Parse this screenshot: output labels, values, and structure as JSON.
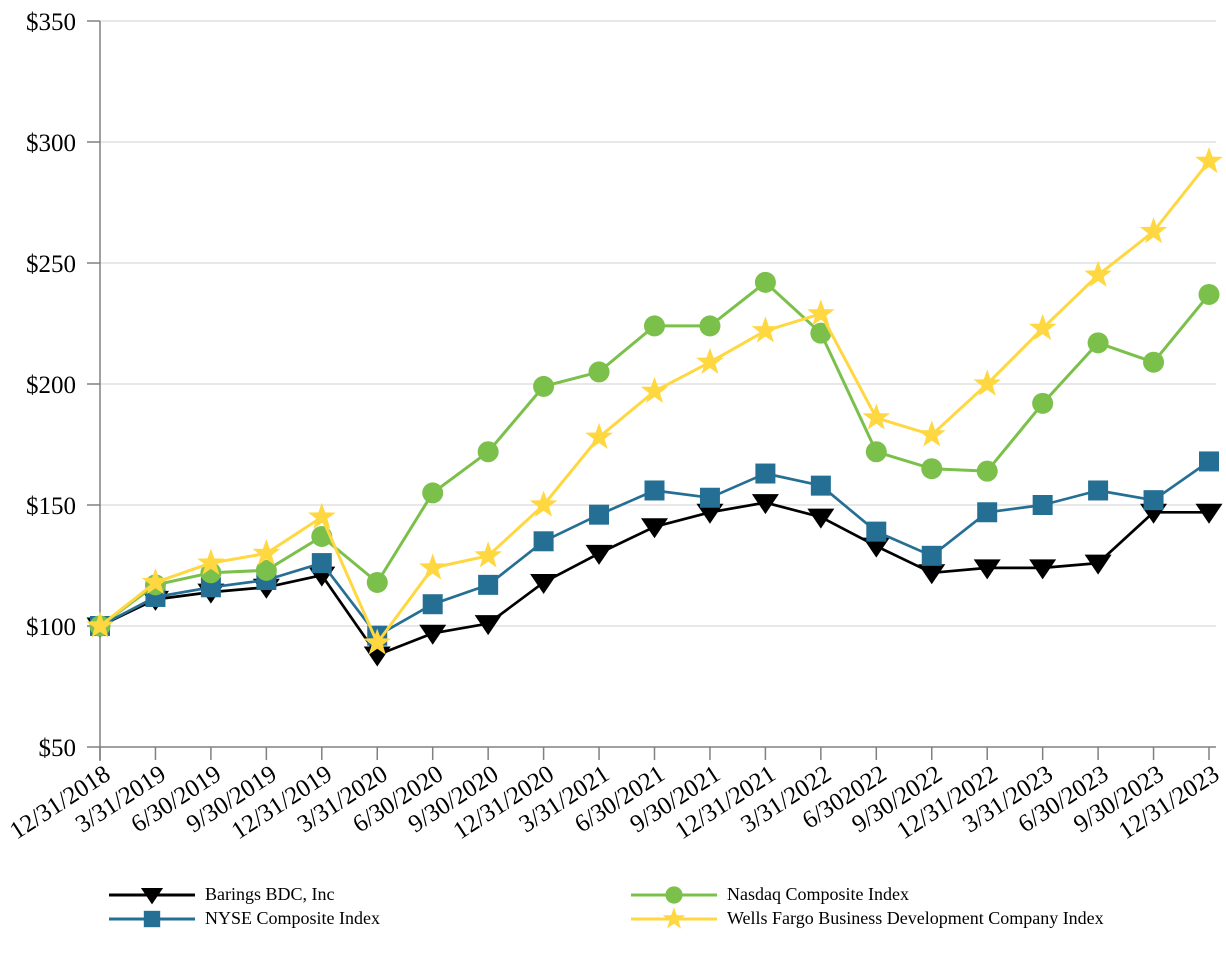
{
  "chart_data": {
    "type": "line",
    "title": "",
    "x_tick_labels": [
      "12/31/2018",
      "3/31/2019",
      "6/30/2019",
      "9/30/2019",
      "12/31/2019",
      "3/31/2020",
      "6/30/2020",
      "9/30/2020",
      "12/31/2020",
      "3/31/2021",
      "6/30/2021",
      "9/30/2021",
      "12/31/2021",
      "3/31/2022",
      "6/302022",
      "9/30/2022",
      "12/31/2022",
      "3/31/2023",
      "6/30/2023",
      "9/30/2023",
      "12/31/2023"
    ],
    "y_axis": {
      "min": 50,
      "max": 350,
      "step": 50,
      "prefix": "$"
    },
    "y_tick_labels": [
      "$50",
      "$100",
      "$150",
      "$200",
      "$250",
      "$300",
      "$350"
    ],
    "grid": {
      "show": true,
      "color": "#d9d9d9",
      "axis_color": "#808080"
    },
    "legend_position": "bottom",
    "legend_columns": [
      [
        0,
        1
      ],
      [
        2,
        3
      ]
    ],
    "series": [
      {
        "name": "Barings BDC, Inc",
        "color": "#000000",
        "marker": "triangle-down",
        "values": [
          100,
          111,
          114,
          116,
          121,
          88,
          97,
          101,
          118,
          130,
          141,
          147,
          151,
          145,
          133,
          122,
          124,
          124,
          126,
          147,
          147
        ]
      },
      {
        "name": "NYSE Composite Index",
        "color": "#266F94",
        "marker": "square",
        "values": [
          100,
          112,
          116,
          119,
          126,
          96,
          109,
          117,
          135,
          146,
          156,
          153,
          163,
          158,
          139,
          129,
          147,
          150,
          156,
          152,
          168
        ]
      },
      {
        "name": "Nasdaq Composite Index",
        "color": "#7BC04A",
        "marker": "circle",
        "values": [
          100,
          117,
          122,
          123,
          137,
          118,
          155,
          172,
          199,
          205,
          224,
          224,
          242,
          221,
          172,
          165,
          164,
          192,
          217,
          209,
          237
        ]
      },
      {
        "name": "Wells Fargo Business Development Company Index",
        "color": "#FFD741",
        "marker": "star",
        "values": [
          100,
          118,
          126,
          130,
          145,
          93,
          124,
          129,
          150,
          178,
          197,
          209,
          222,
          229,
          186,
          179,
          200,
          223,
          245,
          263,
          292
        ]
      }
    ]
  }
}
